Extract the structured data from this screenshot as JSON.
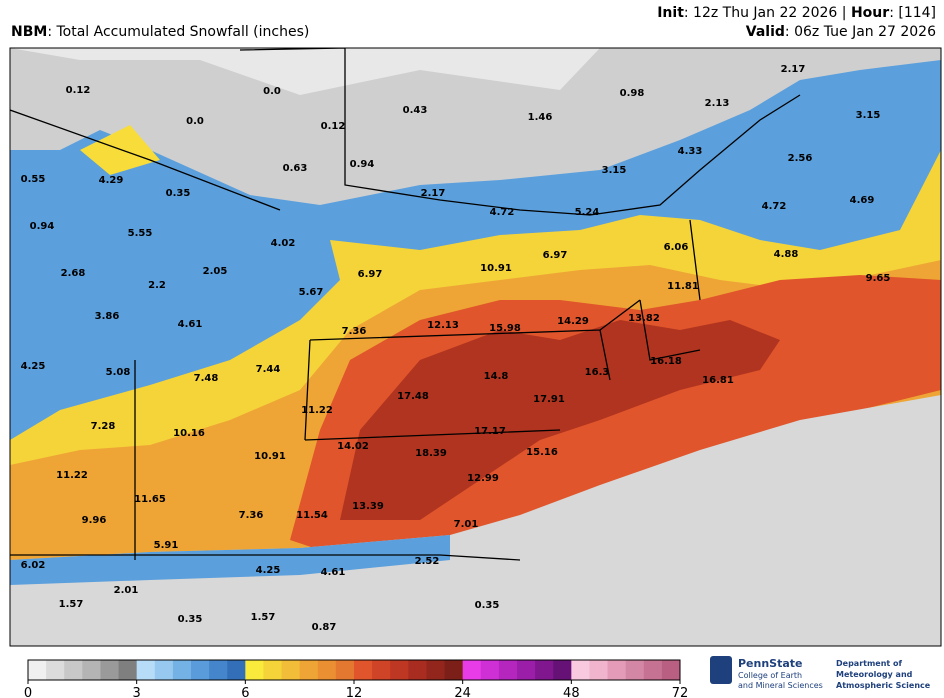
{
  "header": {
    "model": "NBM",
    "title": ": Total Accumulated Snowfall (inches)",
    "init_label": "Init",
    "init": ": 12z Thu Jan 22 2026 | ",
    "hour_label": "Hour",
    "hour": ": [114]",
    "valid_label": "Valid",
    "valid": ": 06z Tue Jan 27 2026"
  },
  "map": {
    "points": [
      "0.12",
      "0.0",
      "0.0",
      "0.43",
      "1.46",
      "0.98",
      "2.17",
      "2.13",
      "3.15",
      "0.12",
      "0.63",
      "0.94",
      "4.33",
      "2.56",
      "3.15",
      "0.55",
      "4.29",
      "0.35",
      "2.17",
      "4.72",
      "5.24",
      "4.72",
      "4.69",
      "0.94",
      "5.55",
      "4.02",
      "6.06",
      "4.88",
      "6.97",
      "2.68",
      "2.05",
      "6.97",
      "10.91",
      "9.65",
      "2.2",
      "5.67",
      "11.81",
      "3.86",
      "4.61",
      "12.13",
      "15.98",
      "14.29",
      "13.82",
      "7.36",
      "4.25",
      "5.08",
      "7.48",
      "7.44",
      "16.18",
      "16.3",
      "14.8",
      "16.81",
      "17.48",
      "17.91",
      "11.22",
      "7.28",
      "10.16",
      "17.17",
      "14.02",
      "15.16",
      "18.39",
      "10.91",
      "12.99",
      "11.22",
      "11.65",
      "13.39",
      "9.96",
      "7.36",
      "11.54",
      "7.01",
      "5.91",
      "2.52",
      "6.02",
      "4.25",
      "4.61",
      "2.01",
      "1.57",
      "0.35",
      "0.35",
      "1.57",
      "0.87"
    ]
  },
  "colorbar": {
    "ticks": [
      0,
      3,
      6,
      12,
      24,
      48,
      72
    ],
    "colors": [
      "#f0f0f0",
      "#dcdcdc",
      "#c8c8c8",
      "#b4b4b4",
      "#9a9a9a",
      "#7f7f7f",
      "#b7dcf7",
      "#96c8f0",
      "#74b2e6",
      "#5a9cdb",
      "#4585cc",
      "#336fb8",
      "#f9ea3b",
      "#f5d43a",
      "#f2bd38",
      "#eea535",
      "#ea8f32",
      "#e57830",
      "#e0552b",
      "#cf4327",
      "#bd3723",
      "#a82d20",
      "#92261c",
      "#7c1f18",
      "#e83ce8",
      "#cf30d6",
      "#b526bf",
      "#9a1ea8",
      "#80178f",
      "#661175",
      "#f9c9e0",
      "#f0b4cd",
      "#e39bb8",
      "#d486a5",
      "#c67293",
      "#b85f82"
    ]
  },
  "logos": {
    "psu": "PennState",
    "psu_line1": "College of Earth",
    "psu_line2": "and Mineral Sciences",
    "dept_line1": "Department of",
    "dept_line2": "Meteorology and",
    "dept_line3": "Atmospheric Science"
  }
}
